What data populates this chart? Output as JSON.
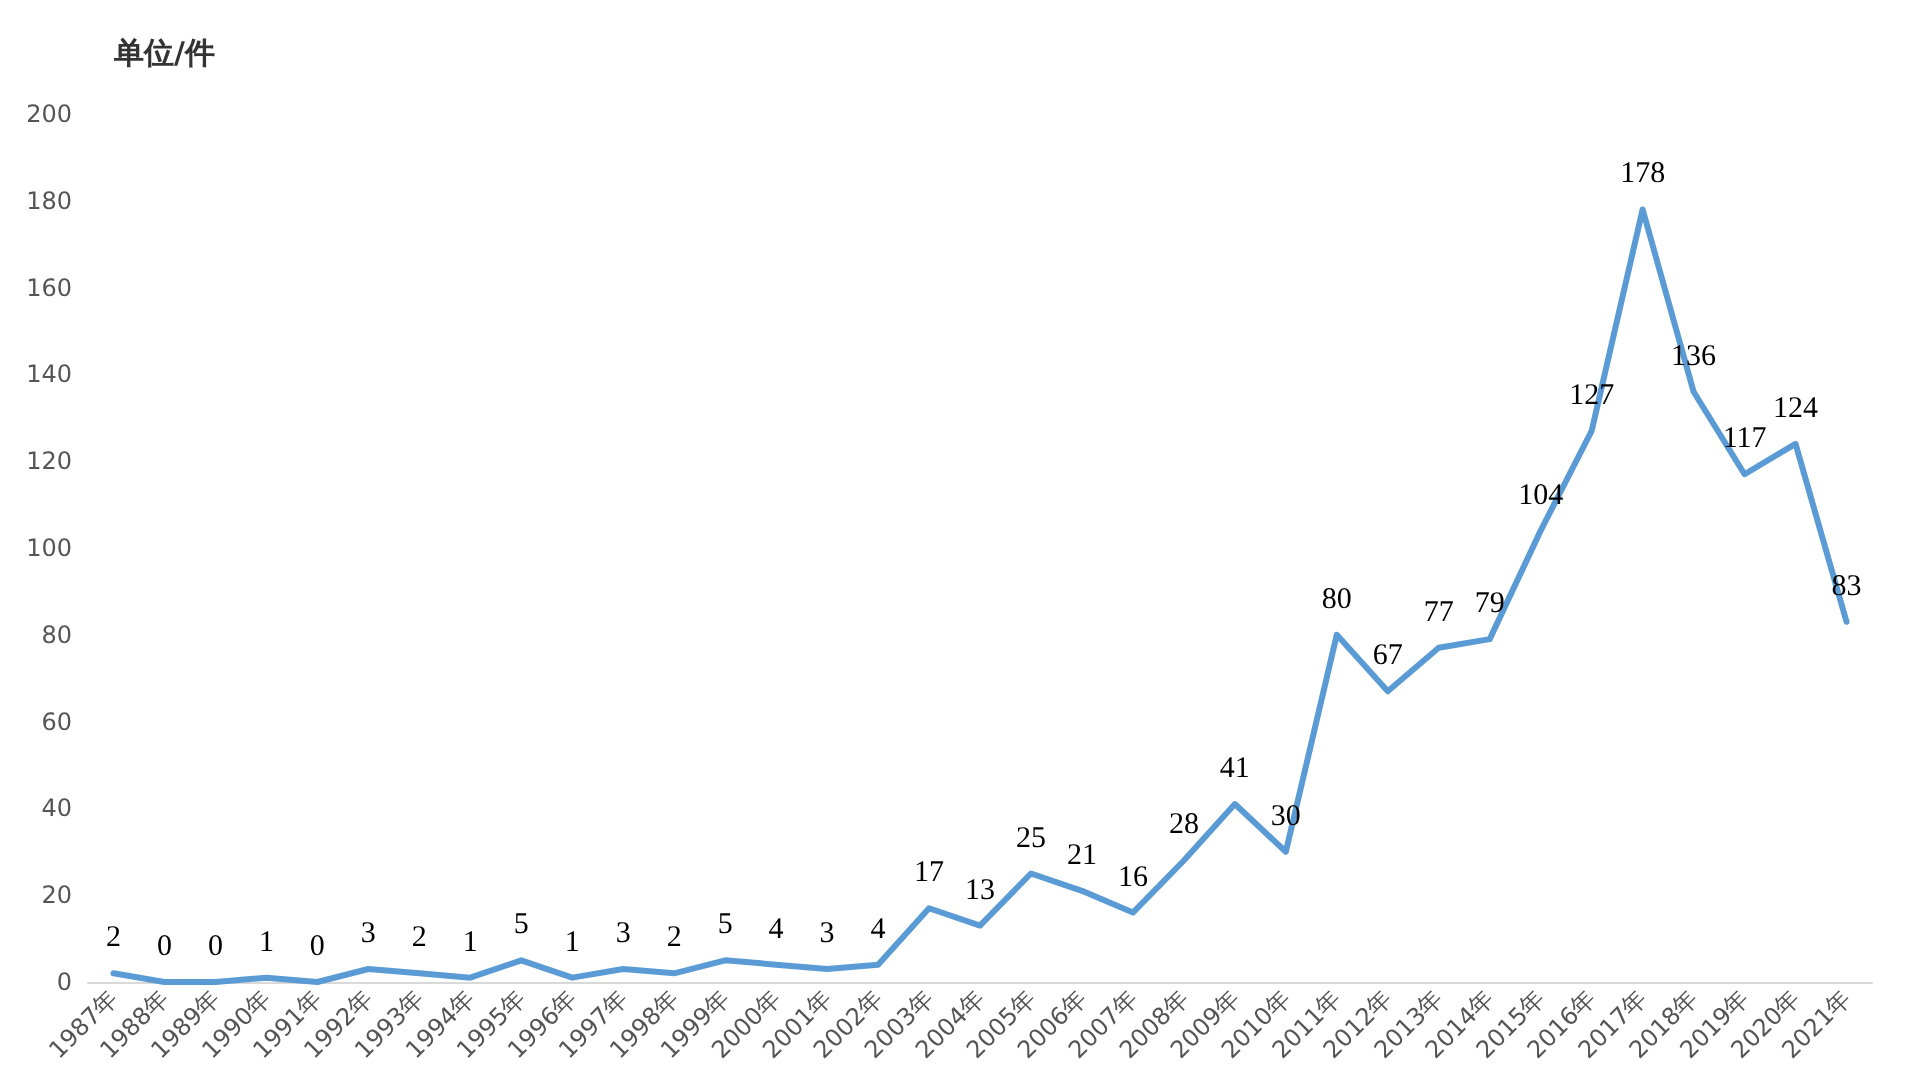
{
  "chart_data": {
    "type": "line",
    "ylabel": "单位/件",
    "categories": [
      "1987年",
      "1988年",
      "1989年",
      "1990年",
      "1991年",
      "1992年",
      "1993年",
      "1994年",
      "1995年",
      "1996年",
      "1997年",
      "1998年",
      "1999年",
      "2000年",
      "2001年",
      "2002年",
      "2003年",
      "2004年",
      "2005年",
      "2006年",
      "2007年",
      "2008年",
      "2009年",
      "2010年",
      "2011年",
      "2012年",
      "2013年",
      "2014年",
      "2015年",
      "2016年",
      "2017年",
      "2018年",
      "2019年",
      "2020年",
      "2021年"
    ],
    "series": [
      {
        "color": "#5b9bd5",
        "values": [
          2,
          0,
          0,
          1,
          0,
          3,
          2,
          1,
          5,
          1,
          3,
          2,
          5,
          4,
          3,
          4,
          17,
          13,
          25,
          21,
          16,
          28,
          41,
          30,
          80,
          67,
          77,
          79,
          104,
          127,
          178,
          136,
          117,
          124,
          83
        ]
      }
    ],
    "ylim": [
      0,
      200
    ],
    "yticks": [
      0,
      20,
      40,
      60,
      80,
      100,
      120,
      140,
      160,
      180,
      200
    ],
    "data_labels": true,
    "grid": false,
    "marker": "none",
    "line_style": "solid"
  }
}
